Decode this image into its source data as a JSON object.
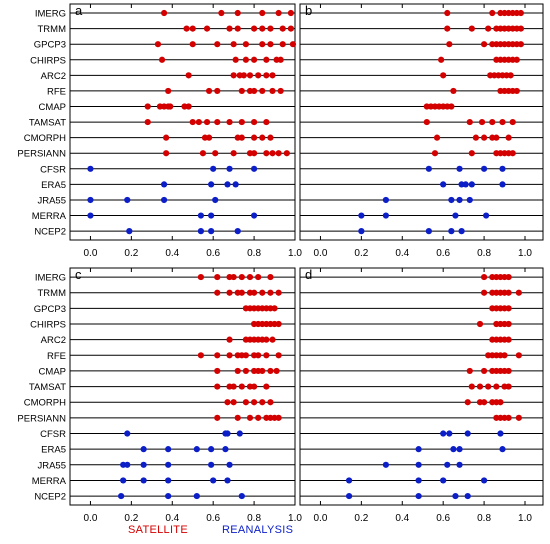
{
  "chart_data": [
    {
      "panel_label": "a",
      "type": "scatter",
      "xlim": [
        -0.1,
        1.0
      ],
      "xticks": [
        "0.0",
        "0.2",
        "0.4",
        "0.6",
        "0.8",
        "1.0"
      ],
      "categories": [
        "IMERG",
        "TRMM",
        "GPCP3",
        "CHIRPS",
        "ARC2",
        "RFE",
        "CMAP",
        "TAMSAT",
        "CMORPH",
        "PERSIANN",
        "CFSR",
        "ERA5",
        "JRA55",
        "MERRA",
        "NCEP2"
      ],
      "series": [
        {
          "values": {
            "IMERG": [
              0.36,
              0.64,
              0.72,
              0.84,
              0.92,
              0.98
            ],
            "TRMM": [
              0.47,
              0.5,
              0.57,
              0.68,
              0.72,
              0.8,
              0.84,
              0.88,
              0.94,
              0.98
            ],
            "GPCP3": [
              0.33,
              0.5,
              0.62,
              0.7,
              0.76,
              0.84,
              0.88,
              0.94,
              0.99
            ],
            "CHIRPS": [
              0.35,
              0.71,
              0.76,
              0.8,
              0.86,
              0.91,
              0.93
            ],
            "ARC2": [
              0.48,
              0.7,
              0.73,
              0.75,
              0.78,
              0.82,
              0.86,
              0.89
            ],
            "RFE": [
              0.38,
              0.58,
              0.62,
              0.74,
              0.78,
              0.8,
              0.84,
              0.89,
              0.93
            ],
            "CMAP": [
              0.28,
              0.34,
              0.36,
              0.38,
              0.39,
              0.46,
              0.48
            ],
            "TAMSAT": [
              0.28,
              0.5,
              0.53,
              0.57,
              0.62,
              0.68,
              0.74,
              0.8,
              0.86
            ],
            "CMORPH": [
              0.37,
              0.56,
              0.58,
              0.72,
              0.74,
              0.8,
              0.84,
              0.88
            ],
            "PERSIANN": [
              0.37,
              0.55,
              0.61,
              0.7,
              0.78,
              0.8,
              0.86,
              0.89,
              0.92,
              0.96
            ]
          }
        },
        {
          "values": {
            "CFSR": [
              0.0,
              0.6,
              0.68,
              0.8
            ],
            "ERA5": [
              0.36,
              0.59,
              0.67,
              0.71
            ],
            "JRA55": [
              0.0,
              0.18,
              0.36,
              0.61
            ],
            "MERRA": [
              0.0,
              0.54,
              0.59,
              0.8
            ],
            "NCEP2": [
              0.19,
              0.54,
              0.59,
              0.72
            ]
          }
        }
      ]
    },
    {
      "panel_label": "b",
      "type": "scatter",
      "xlim": [
        -0.1,
        1.0
      ],
      "xticks": [
        "0.0",
        "0.2",
        "0.4",
        "0.6",
        "0.8",
        "1.0"
      ],
      "categories": [
        "IMERG",
        "TRMM",
        "GPCP3",
        "CHIRPS",
        "ARC2",
        "RFE",
        "CMAP",
        "TAMSAT",
        "CMORPH",
        "PERSIANN",
        "CFSR",
        "ERA5",
        "JRA55",
        "MERRA",
        "NCEP2"
      ],
      "series": [
        {
          "values": {
            "IMERG": [
              0.62,
              0.84,
              0.88,
              0.9,
              0.92,
              0.94,
              0.96,
              0.98
            ],
            "TRMM": [
              0.62,
              0.74,
              0.82,
              0.86,
              0.88,
              0.9,
              0.92,
              0.94,
              0.96,
              0.98
            ],
            "GPCP3": [
              0.63,
              0.8,
              0.84,
              0.86,
              0.88,
              0.9,
              0.92,
              0.94,
              0.96,
              0.98
            ],
            "CHIRPS": [
              0.59,
              0.86,
              0.88,
              0.9,
              0.92,
              0.94,
              0.96
            ],
            "ARC2": [
              0.6,
              0.83,
              0.85,
              0.87,
              0.89,
              0.91,
              0.93
            ],
            "RFE": [
              0.65,
              0.88,
              0.9,
              0.92,
              0.94,
              0.96
            ],
            "CMAP": [
              0.52,
              0.54,
              0.56,
              0.58,
              0.6,
              0.62,
              0.64
            ],
            "TAMSAT": [
              0.52,
              0.73,
              0.79,
              0.84,
              0.89,
              0.94
            ],
            "CMORPH": [
              0.57,
              0.76,
              0.8,
              0.84,
              0.86,
              0.92
            ],
            "PERSIANN": [
              0.56,
              0.74,
              0.86,
              0.88,
              0.9,
              0.92,
              0.94
            ]
          }
        },
        {
          "values": {
            "CFSR": [
              0.53,
              0.68,
              0.8,
              0.89
            ],
            "ERA5": [
              0.6,
              0.69,
              0.71,
              0.74,
              0.89
            ],
            "JRA55": [
              0.32,
              0.64,
              0.68,
              0.73
            ],
            "MERRA": [
              0.2,
              0.32,
              0.66,
              0.81
            ],
            "NCEP2": [
              0.2,
              0.53,
              0.64,
              0.69
            ]
          }
        }
      ]
    },
    {
      "panel_label": "c",
      "type": "scatter",
      "xlim": [
        -0.1,
        1.0
      ],
      "xticks": [
        "0.0",
        "0.2",
        "0.4",
        "0.6",
        "0.8",
        "1.0"
      ],
      "categories": [
        "IMERG",
        "TRMM",
        "GPCP3",
        "CHIRPS",
        "ARC2",
        "RFE",
        "CMAP",
        "TAMSAT",
        "CMORPH",
        "PERSIANN",
        "CFSR",
        "ERA5",
        "JRA55",
        "MERRA",
        "NCEP2"
      ],
      "series": [
        {
          "values": {
            "IMERG": [
              0.54,
              0.62,
              0.68,
              0.7,
              0.74,
              0.78,
              0.82,
              0.88
            ],
            "TRMM": [
              0.62,
              0.68,
              0.72,
              0.74,
              0.78,
              0.8,
              0.84,
              0.88,
              0.92
            ],
            "GPCP3": [
              0.76,
              0.78,
              0.8,
              0.82,
              0.84,
              0.86,
              0.88,
              0.9
            ],
            "CHIRPS": [
              0.8,
              0.82,
              0.84,
              0.86,
              0.88,
              0.9,
              0.92
            ],
            "ARC2": [
              0.68,
              0.76,
              0.78,
              0.8,
              0.82,
              0.84,
              0.86,
              0.89
            ],
            "RFE": [
              0.54,
              0.62,
              0.68,
              0.72,
              0.74,
              0.76,
              0.8,
              0.82,
              0.86,
              0.92
            ],
            "CMAP": [
              0.62,
              0.72,
              0.76,
              0.8,
              0.82,
              0.84,
              0.88,
              0.91
            ],
            "TAMSAT": [
              0.62,
              0.68,
              0.7,
              0.74,
              0.78,
              0.8,
              0.86
            ],
            "CMORPH": [
              0.67,
              0.7,
              0.76,
              0.8,
              0.84,
              0.88
            ],
            "PERSIANN": [
              0.62,
              0.72,
              0.78,
              0.82,
              0.86,
              0.88,
              0.9,
              0.92
            ]
          }
        },
        {
          "values": {
            "CFSR": [
              0.18,
              0.66,
              0.67,
              0.73
            ],
            "ERA5": [
              0.26,
              0.38,
              0.52,
              0.59,
              0.66
            ],
            "JRA55": [
              0.16,
              0.18,
              0.26,
              0.38,
              0.59,
              0.68
            ],
            "MERRA": [
              0.16,
              0.26,
              0.38,
              0.6,
              0.67
            ],
            "NCEP2": [
              0.15,
              0.38,
              0.52,
              0.74
            ]
          }
        }
      ]
    },
    {
      "panel_label": "d",
      "type": "scatter",
      "xlim": [
        -0.1,
        1.0
      ],
      "xticks": [
        "0.0",
        "0.2",
        "0.4",
        "0.6",
        "0.8",
        "1.0"
      ],
      "categories": [
        "IMERG",
        "TRMM",
        "GPCP3",
        "CHIRPS",
        "ARC2",
        "RFE",
        "CMAP",
        "TAMSAT",
        "CMORPH",
        "PERSIANN",
        "CFSR",
        "ERA5",
        "JRA55",
        "MERRA",
        "NCEP2"
      ],
      "series": [
        {
          "values": {
            "IMERG": [
              0.8,
              0.84,
              0.86,
              0.88,
              0.9,
              0.92
            ],
            "TRMM": [
              0.8,
              0.84,
              0.86,
              0.88,
              0.9,
              0.92,
              0.97
            ],
            "GPCP3": [
              0.84,
              0.86,
              0.88,
              0.9,
              0.92
            ],
            "CHIRPS": [
              0.78,
              0.86,
              0.88,
              0.9,
              0.92
            ],
            "ARC2": [
              0.84,
              0.86,
              0.88,
              0.9,
              0.92
            ],
            "RFE": [
              0.82,
              0.84,
              0.86,
              0.88,
              0.9,
              0.97
            ],
            "CMAP": [
              0.73,
              0.8,
              0.84,
              0.86,
              0.88,
              0.9,
              0.92
            ],
            "TAMSAT": [
              0.74,
              0.78,
              0.82,
              0.86,
              0.9,
              0.92
            ],
            "CMORPH": [
              0.72,
              0.78,
              0.8,
              0.84,
              0.86,
              0.88
            ],
            "PERSIANN": [
              0.86,
              0.88,
              0.9,
              0.92,
              0.97
            ]
          }
        },
        {
          "values": {
            "CFSR": [
              0.6,
              0.63,
              0.72,
              0.88
            ],
            "ERA5": [
              0.48,
              0.65,
              0.68,
              0.89
            ],
            "JRA55": [
              0.32,
              0.48,
              0.62,
              0.68
            ],
            "MERRA": [
              0.14,
              0.48,
              0.6,
              0.8
            ],
            "NCEP2": [
              0.14,
              0.48,
              0.66,
              0.72
            ]
          }
        }
      ]
    }
  ],
  "legend": {
    "satellite": "SATELLITE",
    "reanalysis": "REANALYSIS"
  },
  "colors": {
    "satellite": "#d40000",
    "reanalysis": "#0b1ec8",
    "grid": "#000000"
  }
}
